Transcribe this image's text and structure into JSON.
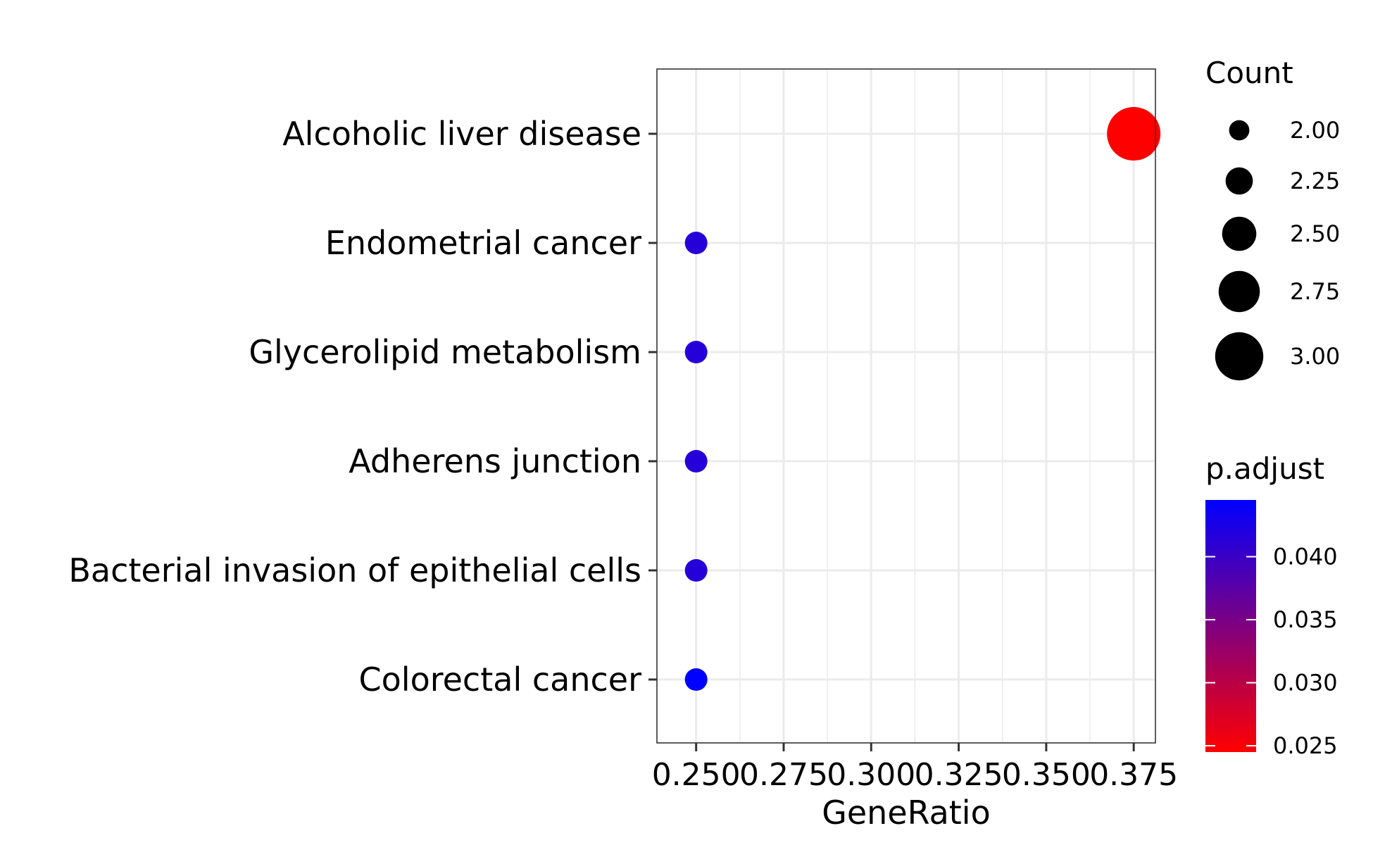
{
  "chart_data": {
    "type": "scatter",
    "xlabel": "GeneRatio",
    "ylabel": "",
    "xlim": [
      0.2388,
      0.3812
    ],
    "x_ticks": [
      0.25,
      0.275,
      0.3,
      0.325,
      0.35,
      0.375
    ],
    "x_tick_labels": [
      "0.250",
      "0.275",
      "0.300",
      "0.325",
      "0.350",
      "0.375"
    ],
    "categories": [
      "Alcoholic liver disease",
      "Endometrial cancer",
      "Glycerolipid metabolism",
      "Adherens junction",
      "Bacterial invasion of epithelial cells",
      "Colorectal cancer"
    ],
    "points": [
      {
        "term": "Alcoholic liver disease",
        "gene_ratio": 0.375,
        "count": 3,
        "p_adjust": 0.0245
      },
      {
        "term": "Endometrial cancer",
        "gene_ratio": 0.25,
        "count": 2,
        "p_adjust": 0.0415
      },
      {
        "term": "Glycerolipid metabolism",
        "gene_ratio": 0.25,
        "count": 2,
        "p_adjust": 0.0415
      },
      {
        "term": "Adherens junction",
        "gene_ratio": 0.25,
        "count": 2,
        "p_adjust": 0.0415
      },
      {
        "term": "Bacterial invasion of epithelial cells",
        "gene_ratio": 0.25,
        "count": 2,
        "p_adjust": 0.0415
      },
      {
        "term": "Colorectal cancer",
        "gene_ratio": 0.25,
        "count": 2,
        "p_adjust": 0.0445
      }
    ],
    "size_legend": {
      "title": "Count",
      "values": [
        2.0,
        2.25,
        2.5,
        2.75,
        3.0
      ],
      "labels": [
        "2.00",
        "2.25",
        "2.50",
        "2.75",
        "3.00"
      ]
    },
    "color_legend": {
      "title": "p.adjust",
      "range": [
        0.0245,
        0.0445
      ],
      "ticks": [
        0.025,
        0.03,
        0.035,
        0.04
      ],
      "tick_labels": [
        "0.025",
        "0.030",
        "0.035",
        "0.040"
      ],
      "low_color": "#ff0000",
      "high_color": "#0000ff"
    },
    "grid": true,
    "legend_position": "right"
  }
}
